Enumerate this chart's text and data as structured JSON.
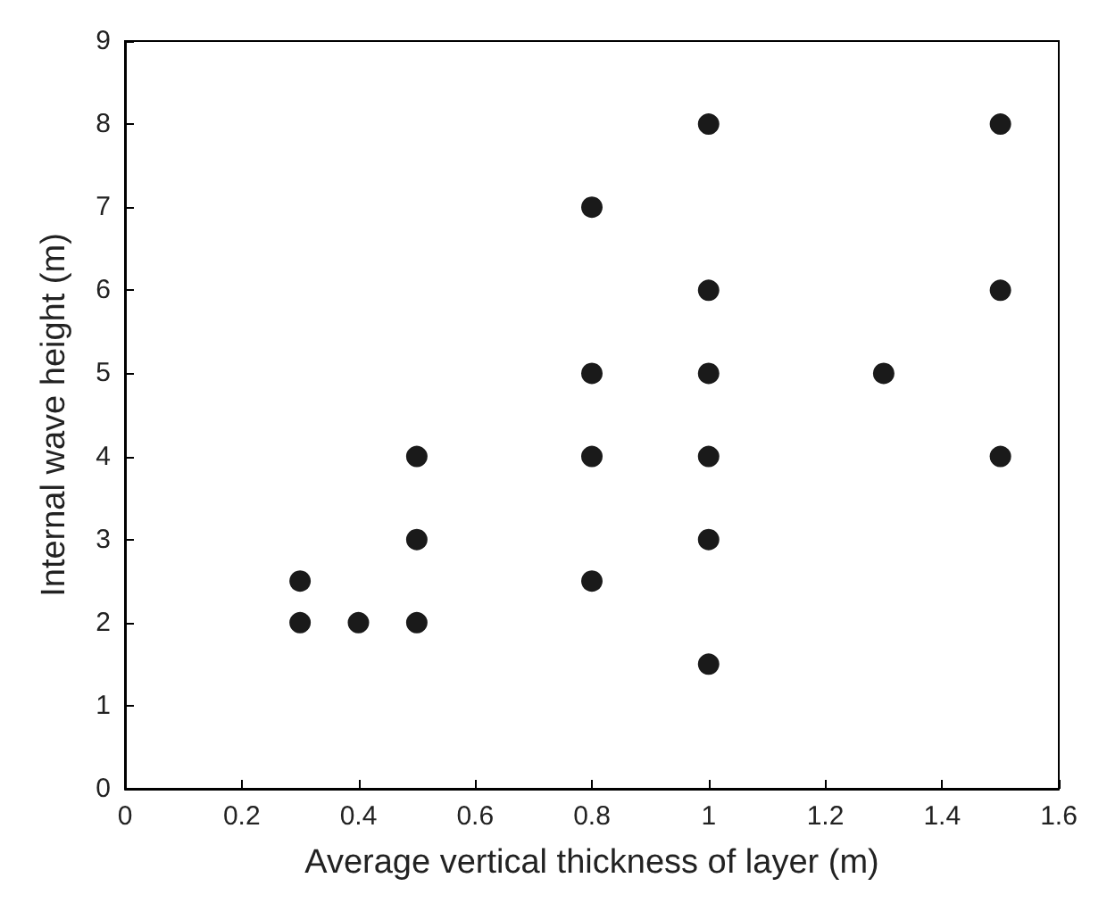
{
  "chart_data": {
    "type": "scatter",
    "xlabel": "Average vertical thickness of layer (m)",
    "ylabel": "Internal wave height (m)",
    "x": [
      0.3,
      0.3,
      0.4,
      0.5,
      0.5,
      0.5,
      0.8,
      0.8,
      0.8,
      0.8,
      1,
      1,
      1,
      1,
      1,
      1,
      1.3,
      1.5,
      1.5,
      1.5
    ],
    "series": [
      {
        "color": "#1a1a1a",
        "values": [
          2.5,
          2,
          2,
          2,
          3,
          4,
          2.5,
          4,
          5,
          7,
          1.5,
          3,
          4,
          5,
          6,
          8,
          5,
          4,
          6,
          8
        ]
      }
    ],
    "xlim": [
      0,
      1.6
    ],
    "xticks": [
      0,
      0.2,
      0.4,
      0.6,
      0.8,
      1,
      1.2,
      1.4,
      1.6
    ],
    "ylim": [
      0,
      9
    ],
    "yticks": [
      0,
      1,
      2,
      3,
      4,
      5,
      6,
      7,
      8,
      9
    ],
    "grid": false,
    "marker": "circle"
  }
}
